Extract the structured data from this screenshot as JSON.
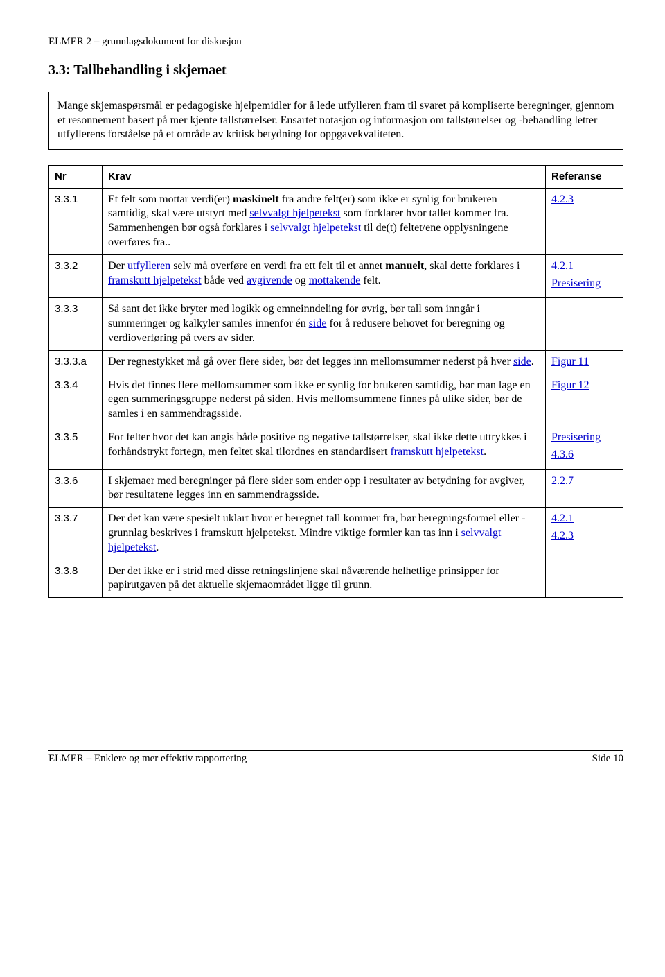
{
  "header": "ELMER 2 – grunnlagsdokument for diskusjon",
  "section_title": "3.3: Tallbehandling i skjemaet",
  "intro": "Mange skjemaspørsmål er pedagogiske hjelpemidler for å lede utfylleren fram til svaret på kompliserte beregninger, gjennom et resonnement basert på mer kjente tallstørrelser. Ensartet notasjon og informasjon om tallstørrelser og -behandling letter utfyllerens forståelse på et område av kritisk betydning for oppgavekvaliteten.",
  "th_nr": "Nr",
  "th_krav": "Krav",
  "th_ref": "Referanse",
  "rows": {
    "r1": {
      "nr": "3.3.1",
      "krav_pre": "Et felt som mottar verdi(er) ",
      "krav_b1": "maskinelt",
      "krav_mid1": " fra andre felt(er) som ikke er synlig for brukeren samtidig, skal være utstyrt med ",
      "krav_link1": "selvvalgt hjelpetekst",
      "krav_mid2": " som forklarer hvor tallet kommer fra. Sammenhengen bør også forklares i ",
      "krav_link2": "selvvalgt hjelpetekst",
      "krav_post": " til de(t) feltet/ene opplysningene overføres fra..",
      "ref1": "4.2.3"
    },
    "r2": {
      "nr": "3.3.2",
      "t1": "Der ",
      "l1": "utfylleren",
      "t2": " selv må overføre en verdi fra ett felt til et annet ",
      "b1": "manuelt",
      "t3": ", skal dette forklares i ",
      "l2": "framskutt hjelpetekst",
      "t4": " både ved ",
      "l3": "avgivende",
      "t5": " og ",
      "l4": "mottakende",
      "t6": " felt.",
      "ref1": "4.2.1",
      "ref2": "Presisering"
    },
    "r3": {
      "nr": "3.3.3",
      "t1": "Så sant det ikke bryter med logikk og emneinndeling for øvrig, bør tall som inngår i summeringer og kalkyler samles innenfor én ",
      "l1": "side",
      "t2": " for å redusere behovet for beregning og verdioverføring på tvers av sider."
    },
    "r3a": {
      "nr": "3.3.3.a",
      "t1": "Der regnestykket må gå over flere sider, bør det legges inn mellomsummer nederst på hver ",
      "l1": "side",
      "t2": ".",
      "ref1": "Figur 11"
    },
    "r4": {
      "nr": "3.3.4",
      "t1": "Hvis det finnes flere mellomsummer som ikke er synlig for brukeren samtidig, bør man lage en egen summeringsgruppe nederst på siden. Hvis mellomsummene finnes på ulike sider, bør de samles i en sammendragsside.",
      "ref1": "Figur 12"
    },
    "r5": {
      "nr": "3.3.5",
      "t1": "For felter hvor det kan angis både positive og negative tallstørrelser, skal ikke dette uttrykkes i forhåndstrykt fortegn, men feltet skal tilordnes en standardisert ",
      "l1": "framskutt hjelpetekst",
      "t2": ".",
      "ref1": "Presisering",
      "ref2": "4.3.6"
    },
    "r6": {
      "nr": "3.3.6",
      "t1": "I skjemaer med beregninger på flere sider som ender opp i resultater av betydning for avgiver, bør resultatene legges inn en sammendragsside.",
      "ref1": "2.2.7"
    },
    "r7": {
      "nr": "3.3.7",
      "t1": "Der det kan være spesielt uklart hvor et beregnet tall kommer fra, bør beregningsformel eller -grunnlag beskrives i framskutt hjelpetekst. Mindre viktige formler kan tas inn i ",
      "l1": "selvvalgt hjelpetekst",
      "t2": ".",
      "ref1": "4.2.1",
      "ref2": "4.2.3"
    },
    "r8": {
      "nr": "3.3.8",
      "t1": "Der det ikke er i strid med disse retningslinjene skal nåværende helhetlige prinsipper for papirutgaven på det aktuelle skjemaområdet ligge til grunn."
    }
  },
  "footer_left": "ELMER – Enklere og mer effektiv rapportering",
  "footer_right": "Side 10"
}
